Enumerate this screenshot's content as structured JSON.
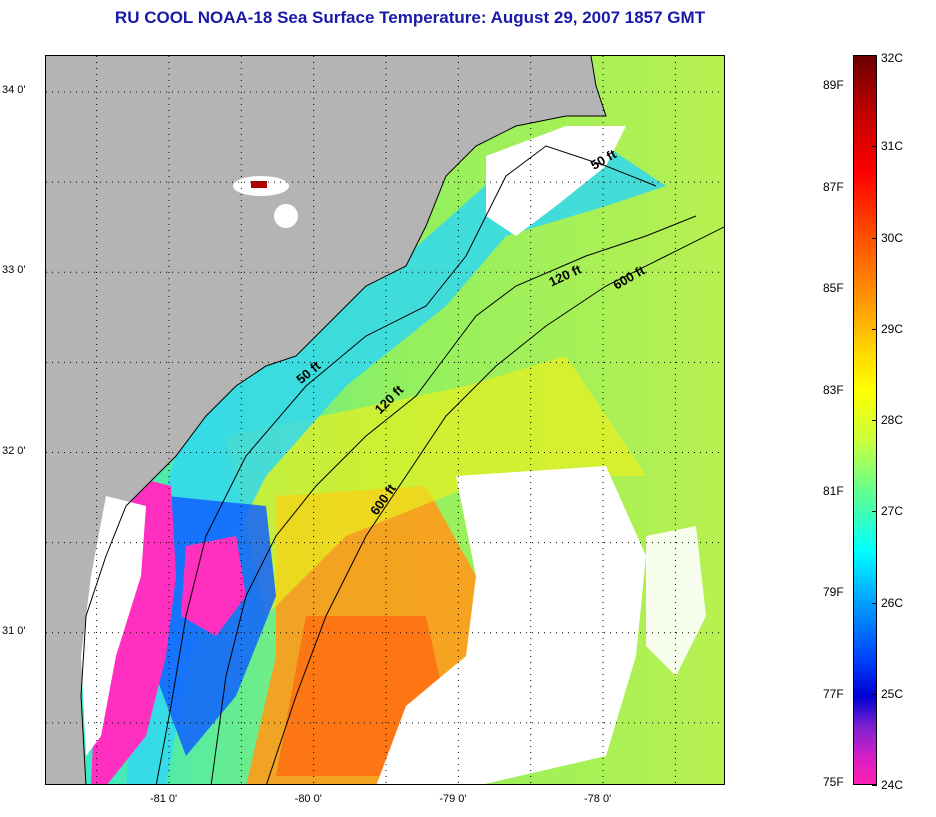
{
  "title": "RU COOL  NOAA-18  Sea Surface Temperature:  August 29, 2007 1857 GMT",
  "map": {
    "lat_labels": [
      {
        "label": "34 0'",
        "lat": 34.0
      },
      {
        "label": "33 0'",
        "lat": 33.0
      },
      {
        "label": "32 0'",
        "lat": 32.0
      },
      {
        "label": "31 0'",
        "lat": 31.0
      }
    ],
    "lon_labels": [
      {
        "label": "-81 0'",
        "lon": -81.0
      },
      {
        "label": "-80 0'",
        "lon": -80.0
      },
      {
        "label": "-79 0'",
        "lon": -79.0
      },
      {
        "label": "-78 0'",
        "lon": -78.0
      }
    ],
    "lon_range": [
      -81.85,
      -77.15
    ],
    "lat_range": [
      30.15,
      34.2
    ],
    "contours": [
      {
        "label": "50 ft"
      },
      {
        "label": "50 ft"
      },
      {
        "label": "120 ft"
      },
      {
        "label": "120 ft"
      },
      {
        "label": "600 ft"
      },
      {
        "label": "600 ft"
      }
    ],
    "colors": {
      "land": "#b4b4b4",
      "cloud": "#ffffff",
      "warm": "#ff8c1a",
      "cool": "#30e0e0",
      "cold": "#ff30c0"
    }
  },
  "colorbar": {
    "celsius": [
      "32C",
      "31C",
      "30C",
      "29C",
      "28C",
      "27C",
      "26C",
      "25C",
      "24C"
    ],
    "fahrenheit": [
      "89F",
      "87F",
      "85F",
      "83F",
      "81F",
      "79F",
      "77F",
      "75F"
    ],
    "range_c": [
      24,
      32
    ]
  }
}
